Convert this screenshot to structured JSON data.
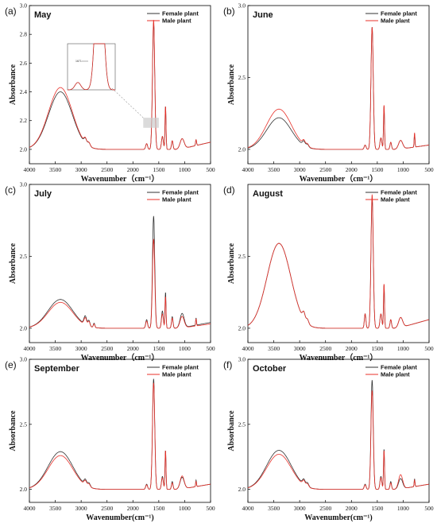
{
  "legend": [
    "Female plant",
    "Male plant"
  ],
  "colors": {
    "female": "#333333",
    "male": "#e8312a",
    "inset_box": "#cccccc"
  },
  "chart_data": [
    {
      "type": "line",
      "panel": "(a)",
      "title": "May",
      "xlabel": "Wavenumber（cm⁻¹）",
      "ylabel": "Absorbance",
      "xlim": [
        4000,
        500
      ],
      "ylim": [
        1.9,
        3.0
      ],
      "xticks": [
        "4000",
        "3500",
        "3000",
        "2500",
        "2000",
        "1500",
        "1000",
        "500"
      ],
      "yticks": [
        "2.0",
        "2.2",
        "2.4",
        "2.6",
        "2.8",
        "3.0"
      ],
      "inset": {
        "label": "1671",
        "x_range": [
          1800,
          1500
        ]
      },
      "series": [
        {
          "name": "Female plant",
          "base": 2.0,
          "peaks": [
            [
              3400,
              0.4,
              230
            ],
            [
              2920,
              0.035,
              25
            ],
            [
              2850,
              0.025,
              25
            ],
            [
              1735,
              0.04,
              18
            ],
            [
              1600,
              0.88,
              22
            ],
            [
              1430,
              0.09,
              18
            ],
            [
              1370,
              0.3,
              10
            ],
            [
              1240,
              0.06,
              15
            ],
            [
              1050,
              0.07,
              40
            ],
            [
              780,
              0.04,
              10
            ]
          ],
          "tail": 0.05
        },
        {
          "name": "Male plant",
          "base": 2.0,
          "peaks": [
            [
              3400,
              0.43,
              230
            ],
            [
              2920,
              0.035,
              25
            ],
            [
              2850,
              0.025,
              25
            ],
            [
              1735,
              0.04,
              18
            ],
            [
              1600,
              0.9,
              22
            ],
            [
              1430,
              0.09,
              18
            ],
            [
              1370,
              0.3,
              10
            ],
            [
              1240,
              0.06,
              15
            ],
            [
              1050,
              0.07,
              40
            ],
            [
              780,
              0.04,
              10
            ]
          ],
          "tail": 0.05
        }
      ]
    },
    {
      "type": "line",
      "panel": "(b)",
      "title": "June",
      "xlabel": "Wavenumber（cm⁻¹）",
      "ylabel": "Absorbance",
      "xlim": [
        4000,
        500
      ],
      "ylim": [
        1.9,
        3.0
      ],
      "xticks": [
        "4000",
        "3500",
        "3000",
        "2500",
        "2000",
        "1500",
        "1000",
        "500"
      ],
      "yticks": [
        "2.0",
        "2.5",
        "3.0"
      ],
      "series": [
        {
          "name": "Female plant",
          "base": 2.0,
          "peaks": [
            [
              3400,
              0.22,
              240
            ],
            [
              2920,
              0.03,
              25
            ],
            [
              2850,
              0.02,
              25
            ],
            [
              1735,
              0.03,
              18
            ],
            [
              1600,
              0.85,
              22
            ],
            [
              1430,
              0.08,
              18
            ],
            [
              1370,
              0.3,
              10
            ],
            [
              1240,
              0.05,
              15
            ],
            [
              1050,
              0.06,
              40
            ],
            [
              780,
              0.09,
              8
            ]
          ],
          "tail": 0.03
        },
        {
          "name": "Male plant",
          "base": 2.0,
          "peaks": [
            [
              3400,
              0.28,
              240
            ],
            [
              2920,
              0.03,
              25
            ],
            [
              2850,
              0.02,
              25
            ],
            [
              1735,
              0.03,
              18
            ],
            [
              1600,
              0.85,
              22
            ],
            [
              1430,
              0.08,
              18
            ],
            [
              1370,
              0.31,
              10
            ],
            [
              1240,
              0.05,
              15
            ],
            [
              1050,
              0.06,
              40
            ],
            [
              780,
              0.1,
              8
            ]
          ],
          "tail": 0.03
        }
      ]
    },
    {
      "type": "line",
      "panel": "(c)",
      "title": "July",
      "xlabel": "Wavenumber（cm⁻¹）",
      "ylabel": "Absorbance",
      "xlim": [
        4000,
        500
      ],
      "ylim": [
        1.9,
        3.0
      ],
      "xticks": [
        "4000",
        "3500",
        "3000",
        "2500",
        "2000",
        "1500",
        "1000",
        "500"
      ],
      "yticks": [
        "2.0",
        "2.5",
        "3.0"
      ],
      "series": [
        {
          "name": "Female plant",
          "base": 2.0,
          "peaks": [
            [
              3400,
              0.2,
              240
            ],
            [
              2920,
              0.06,
              25
            ],
            [
              2850,
              0.04,
              20
            ],
            [
              2750,
              0.03,
              15
            ],
            [
              1735,
              0.06,
              18
            ],
            [
              1600,
              0.78,
              22
            ],
            [
              1430,
              0.12,
              18
            ],
            [
              1370,
              0.25,
              10
            ],
            [
              1240,
              0.08,
              15
            ],
            [
              1050,
              0.1,
              40
            ],
            [
              780,
              0.05,
              8
            ]
          ],
          "tail": 0.04
        },
        {
          "name": "Male plant",
          "base": 2.0,
          "peaks": [
            [
              3400,
              0.18,
              240
            ],
            [
              2920,
              0.05,
              25
            ],
            [
              2850,
              0.035,
              20
            ],
            [
              2750,
              0.025,
              15
            ],
            [
              1735,
              0.05,
              18
            ],
            [
              1600,
              0.62,
              22
            ],
            [
              1430,
              0.1,
              18
            ],
            [
              1370,
              0.22,
              10
            ],
            [
              1240,
              0.07,
              15
            ],
            [
              1050,
              0.08,
              40
            ],
            [
              780,
              0.05,
              8
            ]
          ],
          "tail": 0.03
        }
      ]
    },
    {
      "type": "line",
      "panel": "(d)",
      "title": "August",
      "xlabel": "Wavenumber（cm⁻¹）",
      "ylabel": "Absorbance",
      "xlim": [
        4000,
        500
      ],
      "ylim": [
        1.9,
        3.0
      ],
      "xticks": [
        "4000",
        "3500",
        "3000",
        "2500",
        "2000",
        "1500",
        "1000",
        "500"
      ],
      "yticks": [
        "2.0",
        "2.5"
      ],
      "series": [
        {
          "name": "Female plant",
          "base": 2.0,
          "peaks": [
            [
              3400,
              0.59,
              230
            ],
            [
              2920,
              0.05,
              25
            ],
            [
              2850,
              0.03,
              25
            ],
            [
              1735,
              0.1,
              15
            ],
            [
              1600,
              0.9,
              22
            ],
            [
              1430,
              0.1,
              18
            ],
            [
              1370,
              0.3,
              10
            ],
            [
              1240,
              0.06,
              15
            ],
            [
              1050,
              0.07,
              40
            ]
          ],
          "tail": 0.06
        },
        {
          "name": "Male plant",
          "base": 2.0,
          "peaks": [
            [
              3400,
              0.59,
              230
            ],
            [
              2920,
              0.05,
              25
            ],
            [
              2850,
              0.03,
              25
            ],
            [
              1735,
              0.1,
              15
            ],
            [
              1600,
              0.93,
              22
            ],
            [
              1430,
              0.1,
              18
            ],
            [
              1370,
              0.31,
              10
            ],
            [
              1240,
              0.06,
              15
            ],
            [
              1050,
              0.07,
              40
            ]
          ],
          "tail": 0.06
        }
      ]
    },
    {
      "type": "line",
      "panel": "(e)",
      "title": "September",
      "xlabel": "Wavenumber(cm⁻¹)",
      "ylabel": "Absorbance",
      "xlim": [
        4000,
        500
      ],
      "ylim": [
        1.9,
        3.0
      ],
      "xticks": [
        "4000",
        "3500",
        "3000",
        "2500",
        "2000",
        "1500",
        "1000",
        "500"
      ],
      "yticks": [
        "2.0",
        "2.5",
        "3.0"
      ],
      "series": [
        {
          "name": "Female plant",
          "base": 2.0,
          "peaks": [
            [
              3400,
              0.29,
              240
            ],
            [
              2920,
              0.04,
              25
            ],
            [
              2850,
              0.03,
              25
            ],
            [
              1735,
              0.04,
              18
            ],
            [
              1600,
              0.85,
              22
            ],
            [
              1430,
              0.1,
              18
            ],
            [
              1370,
              0.3,
              10
            ],
            [
              1240,
              0.06,
              15
            ],
            [
              1050,
              0.09,
              40
            ],
            [
              780,
              0.05,
              8
            ]
          ],
          "tail": 0.04
        },
        {
          "name": "Male plant",
          "base": 2.0,
          "peaks": [
            [
              3400,
              0.26,
              240
            ],
            [
              2920,
              0.035,
              25
            ],
            [
              2850,
              0.025,
              25
            ],
            [
              1735,
              0.035,
              18
            ],
            [
              1600,
              0.82,
              22
            ],
            [
              1430,
              0.09,
              18
            ],
            [
              1370,
              0.3,
              10
            ],
            [
              1240,
              0.05,
              15
            ],
            [
              1050,
              0.1,
              40
            ],
            [
              780,
              0.04,
              8
            ]
          ],
          "tail": 0.04
        }
      ]
    },
    {
      "type": "line",
      "panel": "(f)",
      "title": "October",
      "xlabel": "Wavenumber(cm⁻¹)",
      "ylabel": "Absorbance",
      "xlim": [
        4000,
        500
      ],
      "ylim": [
        1.9,
        3.0
      ],
      "xticks": [
        "4000",
        "3500",
        "3000",
        "2500",
        "2000",
        "1500",
        "1000",
        "500"
      ],
      "yticks": [
        "2.0",
        "2.5",
        "3.0"
      ],
      "series": [
        {
          "name": "Female plant",
          "base": 2.0,
          "peaks": [
            [
              3400,
              0.3,
              240
            ],
            [
              2920,
              0.04,
              25
            ],
            [
              2850,
              0.03,
              25
            ],
            [
              1735,
              0.04,
              18
            ],
            [
              1600,
              0.84,
              22
            ],
            [
              1430,
              0.1,
              18
            ],
            [
              1370,
              0.31,
              10
            ],
            [
              1240,
              0.06,
              15
            ],
            [
              1050,
              0.08,
              40
            ],
            [
              780,
              0.06,
              8
            ]
          ],
          "tail": 0.04
        },
        {
          "name": "Male plant",
          "base": 2.0,
          "peaks": [
            [
              3400,
              0.27,
              240
            ],
            [
              2920,
              0.035,
              25
            ],
            [
              2850,
              0.025,
              25
            ],
            [
              1735,
              0.035,
              18
            ],
            [
              1600,
              0.76,
              22
            ],
            [
              1430,
              0.09,
              18
            ],
            [
              1370,
              0.3,
              10
            ],
            [
              1240,
              0.05,
              15
            ],
            [
              1050,
              0.11,
              40
            ],
            [
              780,
              0.05,
              8
            ]
          ],
          "tail": 0.04
        }
      ]
    }
  ]
}
